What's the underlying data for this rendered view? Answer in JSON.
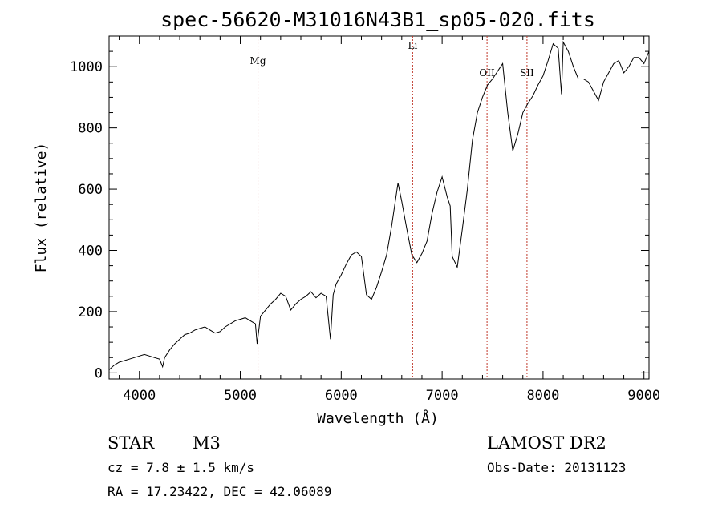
{
  "chart_data": {
    "type": "line",
    "title": "spec-56620-M31016N43B1_sp05-020.fits",
    "xlabel": "Wavelength (Å)",
    "ylabel": "Flux (relative)",
    "xlim": [
      3700,
      9050
    ],
    "ylim": [
      -20,
      1100
    ],
    "x_ticks": [
      4000,
      5000,
      6000,
      7000,
      8000,
      9000
    ],
    "y_ticks": [
      0,
      200,
      400,
      600,
      800,
      1000
    ],
    "grid": false,
    "series": [
      {
        "x": [
          3700,
          3750,
          3800,
          3850,
          3900,
          3950,
          4000,
          4050,
          4100,
          4150,
          4200,
          4230,
          4250,
          4300,
          4350,
          4400,
          4450,
          4500,
          4550,
          4600,
          4650,
          4700,
          4750,
          4800,
          4850,
          4900,
          4950,
          5000,
          5050,
          5100,
          5150,
          5167,
          5200,
          5250,
          5300,
          5350,
          5400,
          5450,
          5500,
          5550,
          5600,
          5650,
          5700,
          5750,
          5800,
          5850,
          5893,
          5920,
          5950,
          6000,
          6050,
          6100,
          6150,
          6200,
          6250,
          6300,
          6350,
          6400,
          6450,
          6500,
          6563,
          6600,
          6650,
          6700,
          6750,
          6800,
          6850,
          6900,
          6950,
          7000,
          7050,
          7080,
          7100,
          7150,
          7200,
          7250,
          7300,
          7350,
          7400,
          7450,
          7500,
          7550,
          7580,
          7600,
          7650,
          7700,
          7750,
          7800,
          7850,
          7900,
          7950,
          8000,
          8050,
          8100,
          8150,
          8183,
          8200,
          8250,
          8300,
          8350,
          8400,
          8450,
          8500,
          8550,
          8600,
          8650,
          8700,
          8750,
          8800,
          8850,
          8900,
          8950,
          9000,
          9050
        ],
        "y": [
          10,
          25,
          35,
          40,
          45,
          50,
          55,
          60,
          55,
          50,
          45,
          20,
          50,
          75,
          95,
          110,
          125,
          130,
          140,
          145,
          150,
          140,
          130,
          135,
          150,
          160,
          170,
          175,
          180,
          170,
          160,
          95,
          185,
          205,
          225,
          240,
          260,
          250,
          205,
          225,
          240,
          250,
          265,
          245,
          260,
          250,
          110,
          255,
          290,
          320,
          355,
          385,
          395,
          380,
          255,
          240,
          280,
          330,
          385,
          480,
          620,
          560,
          470,
          385,
          360,
          390,
          430,
          520,
          590,
          640,
          575,
          545,
          380,
          345,
          470,
          600,
          760,
          850,
          900,
          940,
          960,
          985,
          1000,
          1010,
          850,
          725,
          780,
          850,
          880,
          905,
          940,
          970,
          1020,
          1075,
          1060,
          910,
          1080,
          1050,
          1000,
          960,
          960,
          950,
          920,
          890,
          950,
          980,
          1010,
          1020,
          980,
          1000,
          1030,
          1030,
          1010,
          1050
        ]
      }
    ],
    "spectral_lines": [
      {
        "label": "Mg",
        "x": 5175
      },
      {
        "label": "Li",
        "x": 6708
      },
      {
        "label": "OII",
        "x": 7445
      },
      {
        "label": "SII",
        "x": 7841
      }
    ]
  },
  "info": {
    "object_class": "STAR",
    "subclass": "M3",
    "cz": "cz = 7.8 ± 1.5 km/s",
    "coords": "RA =  17.23422, DEC =  42.06089",
    "survey": "LAMOST DR2",
    "obs_date": "Obs-Date: 20131123"
  }
}
